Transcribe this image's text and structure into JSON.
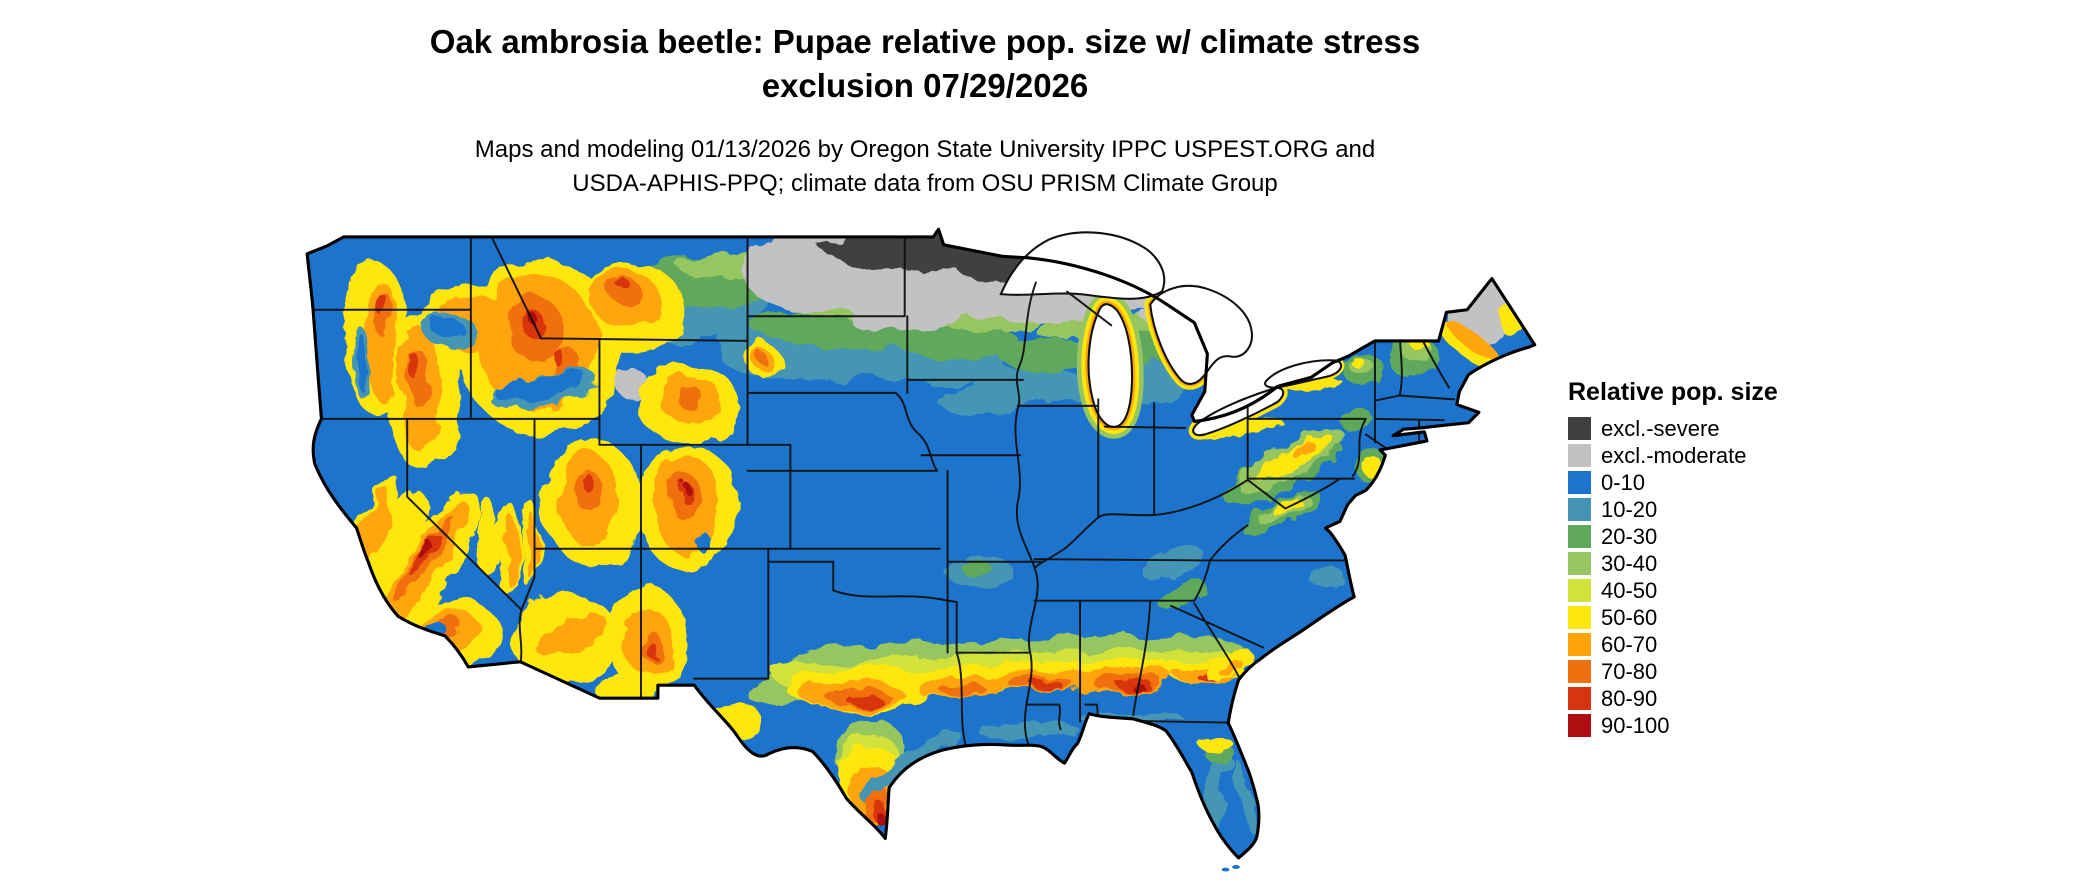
{
  "header": {
    "title_line1": "Oak ambrosia beetle: Pupae relative pop. size w/ climate stress",
    "title_line2": "exclusion 07/29/2026",
    "subtitle_line1": "Maps and modeling 01/13/2026 by Oregon State University IPPC USPEST.ORG and",
    "subtitle_line2": "USDA-APHIS-PPQ; climate data from OSU PRISM Climate Group"
  },
  "legend": {
    "title": "Relative pop. size",
    "items": [
      {
        "label": "excl.-severe",
        "color": "#3f3f3f"
      },
      {
        "label": "excl.-moderate",
        "color": "#c2c2c2"
      },
      {
        "label": "0-10",
        "color": "#1d74cc"
      },
      {
        "label": "10-20",
        "color": "#4495b5"
      },
      {
        "label": "20-30",
        "color": "#5fa85c"
      },
      {
        "label": "30-40",
        "color": "#97c561"
      },
      {
        "label": "40-50",
        "color": "#d3e23a"
      },
      {
        "label": "50-60",
        "color": "#ffe60c"
      },
      {
        "label": "60-70",
        "color": "#ffa50a"
      },
      {
        "label": "70-80",
        "color": "#f0700f"
      },
      {
        "label": "80-90",
        "color": "#d93411"
      },
      {
        "label": "90-100",
        "color": "#ae0e11"
      }
    ]
  },
  "map": {
    "kind": "raster choropleth with state boundaries",
    "region_shown": "contiguous United States"
  }
}
